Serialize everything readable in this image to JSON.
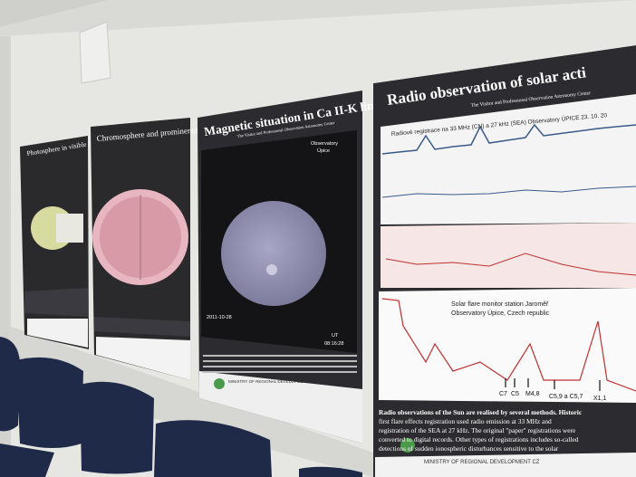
{
  "posters": [
    {
      "title": "Photosphere in visible light"
    },
    {
      "title": "Chromosphere and prominences"
    },
    {
      "title": "Magnetic situation in Ca II-K line",
      "subtitle": "The Visitor and Professional Observation Astronomy Center",
      "observatory": "Observatory",
      "place": "Úpice",
      "date": "2011-10-28",
      "ut": "UT",
      "time": "08:16:28",
      "sponsor": "MINISTRY OF REGIONAL DEVELOPMENT CZ"
    },
    {
      "title": "Radio observation of solar acti",
      "subtitle": "The Visitor and Professional Observation Astronomy Center",
      "chart_caption": "Radiové registrace na 33 MHz (CN) a 27 kHz (SEA)  Observatory ÚPICE  23. 10. 20",
      "monitor_line1": "Solar flare monitor station Jaroměř",
      "monitor_line2": "Observatory Úpice, Czech republic",
      "flare_labels": [
        "C7",
        "C5",
        "M4,8",
        "C5,9 a C5,7",
        "X1,1"
      ],
      "paragraph": [
        "Radio observations of the Sun are realised by several methods. Historic",
        "first flare effects registration used radio emission at 33 MHz and",
        "registration of the SEA at 27 kHz. The original \"paper\" registrations were",
        "converted to digital records. Other types of registrations includes so-called",
        "detections of sudden ionospheric disturbances sensitive to the solar"
      ],
      "sponsor": "MINISTRY OF REGIONAL DEVELOPMENT CZ"
    }
  ]
}
